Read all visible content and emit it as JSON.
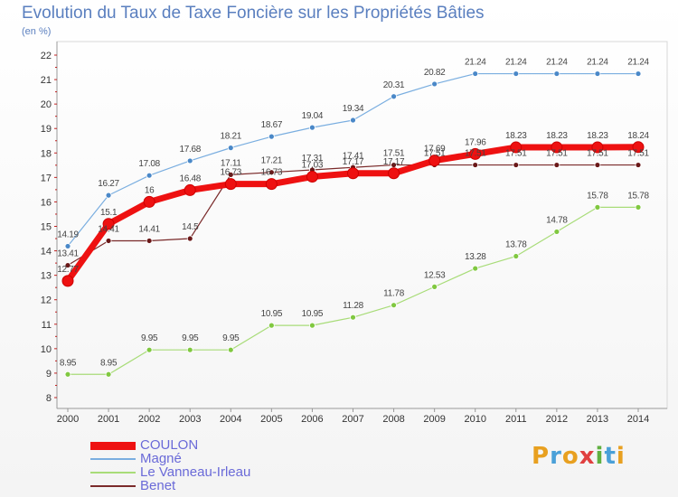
{
  "title": "Evolution du Taux de Taxe Foncière sur les Propriétés Bâties",
  "unit": "(en %)",
  "logo": {
    "letters": [
      "P",
      "r",
      "o",
      "x",
      "i",
      "t",
      "i"
    ],
    "colors": [
      "#e8a020",
      "#4aa0d8",
      "#e8a020",
      "#e04040",
      "#60b040",
      "#4aa0d8",
      "#e8a020"
    ]
  },
  "chart_data": {
    "type": "line",
    "x": [
      "2000",
      "2001",
      "2002",
      "2003",
      "2004",
      "2005",
      "2006",
      "2007",
      "2008",
      "2009",
      "2010",
      "2011",
      "2012",
      "2013",
      "2014"
    ],
    "ylim": [
      8,
      22
    ],
    "yticks": [
      "8",
      "9",
      "10",
      "11",
      "12",
      "13",
      "14",
      "15",
      "16",
      "17",
      "18",
      "19",
      "20",
      "21",
      "22"
    ],
    "grid": false,
    "legend_position": "bottom-left",
    "series": [
      {
        "name": "Magné",
        "color": "#7aaee0",
        "marker": "#4a88c8",
        "width": 1.2,
        "radius": 3,
        "values": [
          14.19,
          16.27,
          17.08,
          17.68,
          18.21,
          18.67,
          19.04,
          19.34,
          20.31,
          20.82,
          21.24,
          21.24,
          21.24,
          21.24,
          21.24
        ],
        "labels": [
          "14.19",
          "16.27",
          "17.08",
          "17.68",
          "18.21",
          "18.67",
          "19.04",
          "19.34",
          "20.31",
          "20.82",
          "21.24",
          "21.24",
          "21.24",
          "21.24",
          "21.24"
        ]
      },
      {
        "name": "Le Vanneau-Irleau",
        "color": "#a8dc78",
        "marker": "#80c840",
        "width": 1.2,
        "radius": 3,
        "values": [
          8.95,
          8.95,
          9.95,
          9.95,
          9.95,
          10.95,
          10.95,
          11.28,
          11.78,
          12.53,
          13.28,
          13.78,
          14.78,
          15.78,
          15.78
        ],
        "labels": [
          "8.95",
          "8.95",
          "9.95",
          "9.95",
          "9.95",
          "10.95",
          "10.95",
          "11.28",
          "11.78",
          "12.53",
          "13.28",
          "13.78",
          "14.78",
          "15.78",
          "15.78"
        ]
      },
      {
        "name": "Benet",
        "color": "#7a2a2a",
        "marker": "#6a1818",
        "width": 1.2,
        "radius": 3,
        "values": [
          13.41,
          14.41,
          14.41,
          14.5,
          17.11,
          17.21,
          17.31,
          17.41,
          17.51,
          17.51,
          17.51,
          17.51,
          17.51,
          17.51,
          17.51
        ],
        "labels": [
          "13.41",
          "14.41",
          "14.41",
          "14.5",
          "17.11",
          "17.21",
          "17.31",
          "17.41",
          "17.51",
          "17.51",
          "17.51",
          "17.51",
          "17.51",
          "17.51",
          "17.51"
        ]
      },
      {
        "name": "COULON",
        "color": "#ee1111",
        "marker": "#ee1111",
        "width": 7,
        "radius": 6,
        "values": [
          12.77,
          15.1,
          16,
          16.48,
          16.73,
          16.73,
          17.03,
          17.17,
          17.17,
          17.69,
          17.96,
          18.23,
          18.23,
          18.23,
          18.24
        ],
        "labels": [
          "12.77",
          "15.1",
          "16",
          "16.48",
          "16.73",
          "16.73",
          "17.03",
          "17.17",
          "17.17",
          "17.69",
          "17.96",
          "18.23",
          "18.23",
          "18.23",
          "18.24"
        ]
      }
    ],
    "legend": [
      "COULON",
      "Magné",
      "Le Vanneau-Irleau",
      "Benet"
    ]
  }
}
